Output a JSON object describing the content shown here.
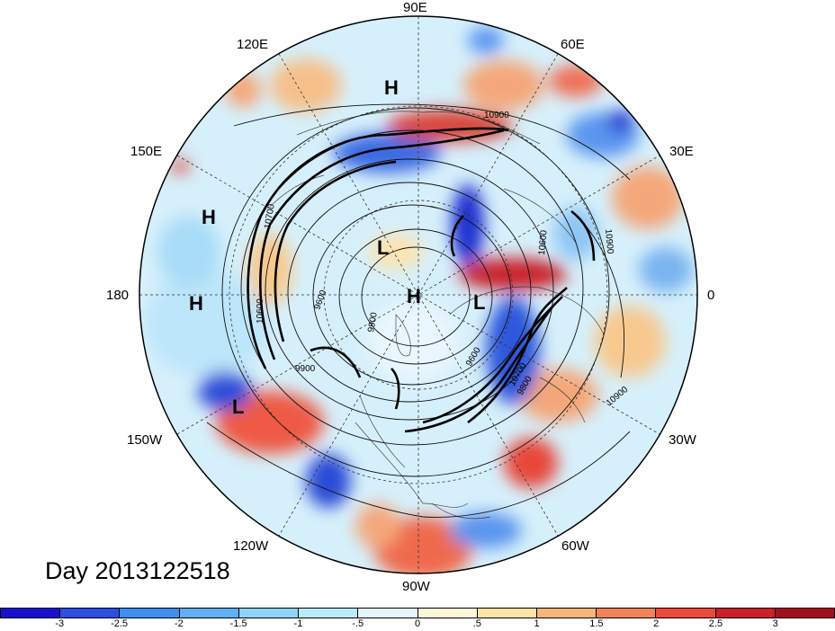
{
  "title": "Day 2013122518",
  "longitude_labels": {
    "lon_90e": "90E",
    "lon_60e": "60E",
    "lon_120e": "120E",
    "lon_30e": "30E",
    "lon_150e": "150E",
    "lon_180": "180",
    "lon_0": "0",
    "lon_150w": "150W",
    "lon_30w": "30W",
    "lon_120w": "120W",
    "lon_60w": "60W",
    "lon_90w": "90W"
  },
  "pressure_centers": [
    "H",
    "H",
    "H",
    "H",
    "L",
    "L",
    "L"
  ],
  "contour_labels": [
    "10900",
    "10700",
    "10600",
    "9900",
    "9600",
    "9800",
    "9900",
    "9600",
    "10700",
    "10600",
    "10900",
    "10600",
    "10900"
  ],
  "colorbar": {
    "colors": [
      "#1a0fd0",
      "#2b4fe0",
      "#3f8ff0",
      "#5fb0f5",
      "#8ed4f8",
      "#b8ecfb",
      "#e3f6fd",
      "#fdf5d8",
      "#fde4a6",
      "#f8b57a",
      "#f28358",
      "#ec4a3b",
      "#cc1f2a",
      "#a30f1c"
    ],
    "labels": [
      "-3",
      "-2.5",
      "-2",
      "-1.5",
      "-1",
      "-.5",
      "0",
      ".5",
      "1",
      "1.5",
      "2",
      "2.5",
      "3"
    ]
  }
}
